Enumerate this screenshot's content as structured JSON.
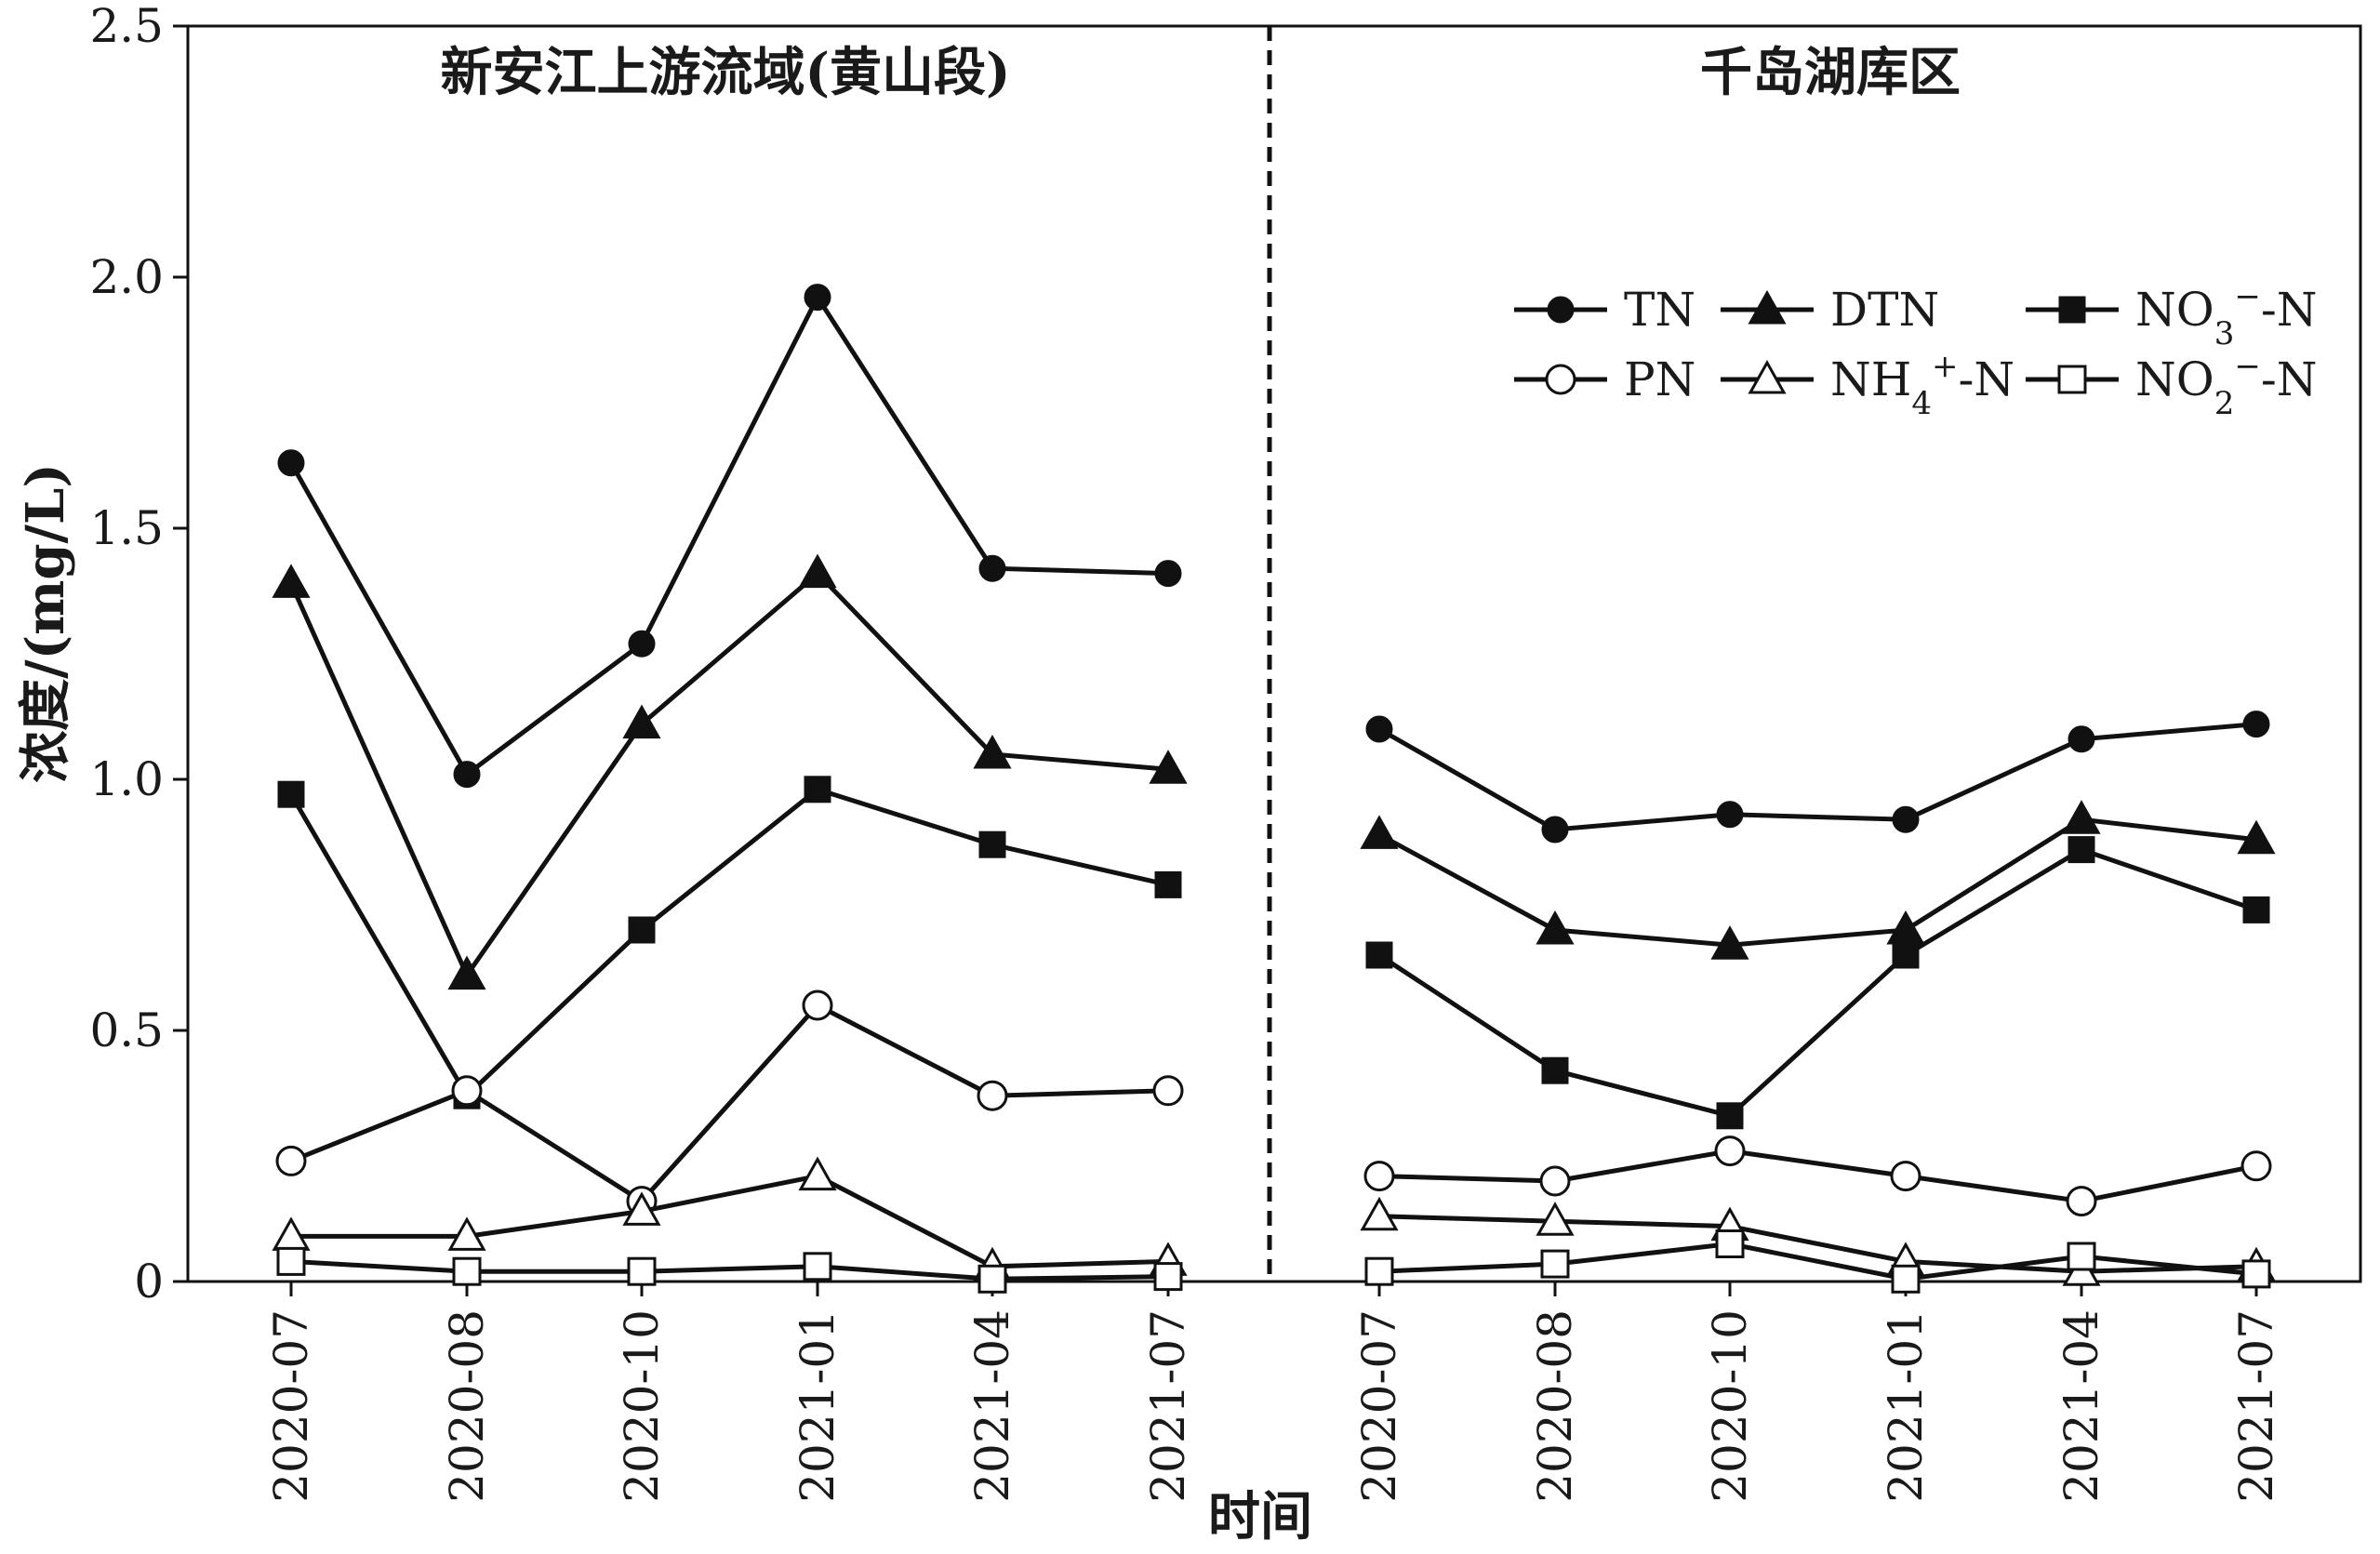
{
  "chart_data": {
    "type": "line",
    "ylabel": "浓度/(mg/L)",
    "xlabel": "时间",
    "ylim": [
      0,
      2.5
    ],
    "yticks": [
      {
        "value": 0,
        "label": "0"
      },
      {
        "value": 0.5,
        "label": "0.5"
      },
      {
        "value": 1.0,
        "label": "1.0"
      },
      {
        "value": 1.5,
        "label": "1.5"
      },
      {
        "value": 2.0,
        "label": "2.0"
      },
      {
        "value": 2.5,
        "label": "2.5"
      }
    ],
    "panels": [
      {
        "title": "新安江上游流域(黄山段)",
        "categories": [
          "2020-07",
          "2020-08",
          "2020-10",
          "2021-01",
          "2021-04",
          "2021-07"
        ],
        "series": [
          {
            "key": "TN",
            "values": [
              1.63,
              1.01,
              1.27,
              1.96,
              1.42,
              1.41
            ]
          },
          {
            "key": "DTN",
            "values": [
              1.39,
              0.61,
              1.11,
              1.41,
              1.05,
              1.02
            ]
          },
          {
            "key": "NO3",
            "values": [
              0.97,
              0.37,
              0.7,
              0.98,
              0.87,
              0.79
            ]
          },
          {
            "key": "PN",
            "values": [
              0.24,
              0.38,
              0.16,
              0.55,
              0.37,
              0.38
            ]
          },
          {
            "key": "NH4",
            "values": [
              0.09,
              0.09,
              0.14,
              0.21,
              0.03,
              0.04
            ]
          },
          {
            "key": "NO2",
            "values": [
              0.04,
              0.02,
              0.02,
              0.03,
              0.005,
              0.01
            ]
          }
        ]
      },
      {
        "title": "千岛湖库区",
        "categories": [
          "2020-07",
          "2020-08",
          "2020-10",
          "2021-01",
          "2021-04",
          "2021-07"
        ],
        "series": [
          {
            "key": "TN",
            "values": [
              1.1,
              0.9,
              0.93,
              0.92,
              1.08,
              1.11
            ]
          },
          {
            "key": "DTN",
            "values": [
              0.89,
              0.7,
              0.67,
              0.7,
              0.92,
              0.88
            ]
          },
          {
            "key": "NO3",
            "values": [
              0.65,
              0.42,
              0.33,
              0.65,
              0.86,
              0.74
            ]
          },
          {
            "key": "PN",
            "values": [
              0.21,
              0.2,
              0.26,
              0.21,
              0.16,
              0.23
            ]
          },
          {
            "key": "NH4",
            "values": [
              0.13,
              0.12,
              0.11,
              0.04,
              0.02,
              0.03
            ]
          },
          {
            "key": "NO2",
            "values": [
              0.02,
              0.035,
              0.075,
              0.005,
              0.05,
              0.015
            ]
          }
        ]
      }
    ],
    "legend": {
      "placement": "upper-right of right panel",
      "entries": [
        {
          "key": "TN",
          "marker": "filled-circle",
          "label": "TN"
        },
        {
          "key": "DTN",
          "marker": "filled-triangle",
          "label": "DTN"
        },
        {
          "key": "NO3",
          "marker": "filled-square",
          "label_main": "NO",
          "label_sub": "3",
          "label_sup": "−",
          "label_tail": "-N"
        },
        {
          "key": "PN",
          "marker": "open-circle",
          "label": "PN"
        },
        {
          "key": "NH4",
          "marker": "open-triangle",
          "label_main": "NH",
          "label_sub": "4",
          "label_sup": "+",
          "label_tail": "-N"
        },
        {
          "key": "NO2",
          "marker": "open-square",
          "label_main": "NO",
          "label_sub": "2",
          "label_sup": "−",
          "label_tail": "-N"
        }
      ]
    },
    "divider": "dashed vertical line between panels",
    "grid": false,
    "colors": {
      "line": "#111111",
      "marker_fill": "#111111",
      "open_fill": "#ffffff",
      "text": "#1a1a1a"
    }
  }
}
